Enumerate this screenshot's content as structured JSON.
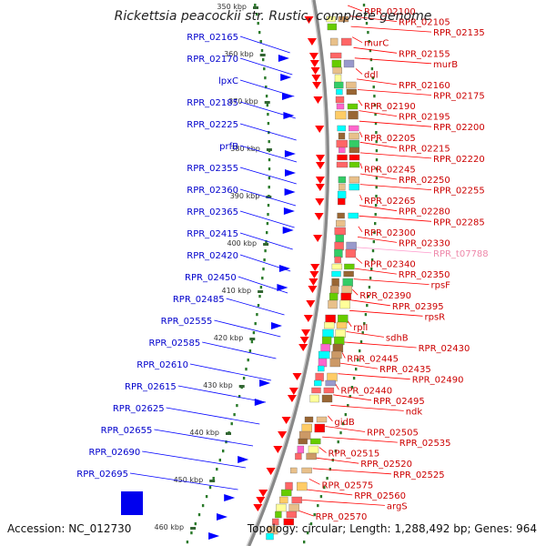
{
  "title": "Rickettsia peacockii str. Rustic, complete genome",
  "accession": "Accession: NC_012730",
  "summary": "Topology: circular; Length: 1,288,492 bp; Genes: 964",
  "colors": {
    "left_label": "#0000cc",
    "right_label": "#cc0000",
    "trna_label": "#ee88aa",
    "backbone": "#888888",
    "tick": "#2a7a2a"
  },
  "kbp_ticks": [
    "350 kbp",
    "360 kbp",
    "370 kbp",
    "380 kbp",
    "390 kbp",
    "400 kbp",
    "410 kbp",
    "420 kbp",
    "430 kbp",
    "440 kbp",
    "450 kbp",
    "460 kbp"
  ],
  "left_labels": [
    "RPR_02165",
    "RPR_02170",
    "lpxC",
    "RPR_02185",
    "RPR_02225",
    "prfB",
    "RPR_02355",
    "RPR_02360",
    "RPR_02365",
    "RPR_02415",
    "RPR_02420",
    "RPR_02450",
    "RPR_02485",
    "RPR_02555",
    "RPR_02585",
    "RPR_02610",
    "RPR_02615",
    "RPR_02625",
    "RPR_02655",
    "RPR_02690",
    "RPR_02695"
  ],
  "right_labels": [
    "RPR_02100",
    "RPR_02105",
    "RPR_02135",
    "murC",
    "RPR_02155",
    "murB",
    "ddl",
    "RPR_02160",
    "RPR_02175",
    "RPR_02190",
    "RPR_02195",
    "RPR_02200",
    "RPR_02205",
    "RPR_02215",
    "RPR_02220",
    "RPR_02245",
    "RPR_02250",
    "RPR_02255",
    "RPR_02265",
    "RPR_02280",
    "RPR_02285",
    "RPR_02300",
    "RPR_02330",
    "RPR_t07788",
    "RPR_02340",
    "RPR_02350",
    "rpsF",
    "RPR_02390",
    "RPR_02395",
    "rpsR",
    "rplI",
    "sdhB",
    "RPR_02430",
    "RPR_02445",
    "RPR_02435",
    "RPR_02490",
    "RPR_02440",
    "RPR_02495",
    "ndk",
    "gidB",
    "RPR_02505",
    "RPR_02535",
    "RPR_02515",
    "RPR_02520",
    "RPR_02525",
    "RPR_02575",
    "RPR_02560",
    "argS",
    "RPR_02570"
  ]
}
